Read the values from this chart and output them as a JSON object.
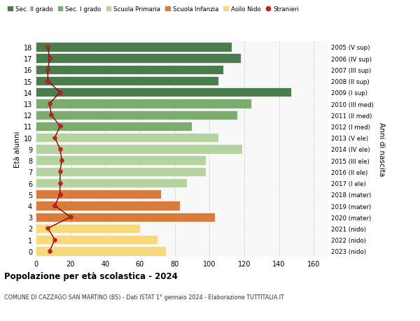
{
  "ages": [
    18,
    17,
    16,
    15,
    14,
    13,
    12,
    11,
    10,
    9,
    8,
    7,
    6,
    5,
    4,
    3,
    2,
    1,
    0
  ],
  "right_labels": [
    "2005 (V sup)",
    "2006 (IV sup)",
    "2007 (III sup)",
    "2008 (II sup)",
    "2009 (I sup)",
    "2010 (III med)",
    "2011 (II med)",
    "2012 (I med)",
    "2013 (V ele)",
    "2014 (IV ele)",
    "2015 (III ele)",
    "2016 (II ele)",
    "2017 (I ele)",
    "2018 (mater)",
    "2019 (mater)",
    "2020 (mater)",
    "2021 (nido)",
    "2022 (nido)",
    "2023 (nido)"
  ],
  "bar_values": [
    113,
    118,
    108,
    105,
    147,
    124,
    116,
    90,
    105,
    119,
    98,
    98,
    87,
    72,
    83,
    103,
    60,
    70,
    75
  ],
  "bar_colors": [
    "#4a7c4e",
    "#4a7c4e",
    "#4a7c4e",
    "#4a7c4e",
    "#4a7c4e",
    "#7daa6e",
    "#7daa6e",
    "#7daa6e",
    "#b5d4a0",
    "#b5d4a0",
    "#b5d4a0",
    "#b5d4a0",
    "#b5d4a0",
    "#d97b3a",
    "#d97b3a",
    "#d97b3a",
    "#f5d97a",
    "#f5d97a",
    "#f5d97a"
  ],
  "stranieri_values": [
    7,
    8,
    7,
    7,
    14,
    8,
    9,
    14,
    11,
    14,
    15,
    14,
    14,
    14,
    11,
    20,
    7,
    11,
    8
  ],
  "legend_labels": [
    "Sec. II grado",
    "Sec. I grado",
    "Scuola Primaria",
    "Scuola Infanzia",
    "Asilo Nido",
    "Stranieri"
  ],
  "legend_colors": [
    "#4a7c4e",
    "#7daa6e",
    "#b5d4a0",
    "#d97b3a",
    "#f5d97a",
    "#cc2222"
  ],
  "ylabel": "Età alunni",
  "right_ylabel": "Anni di nascita",
  "xlabel_values": [
    0,
    20,
    40,
    60,
    80,
    100,
    120,
    140,
    160
  ],
  "xlim": [
    0,
    168
  ],
  "title": "Popolazione per età scolastica - 2024",
  "subtitle": "COMUNE DI CAZZAGO SAN MARTINO (BS) - Dati ISTAT 1° gennaio 2024 - Elaborazione TUTTITALIA.IT",
  "grid_color": "#cccccc",
  "bg_color": "#f8f8f8"
}
